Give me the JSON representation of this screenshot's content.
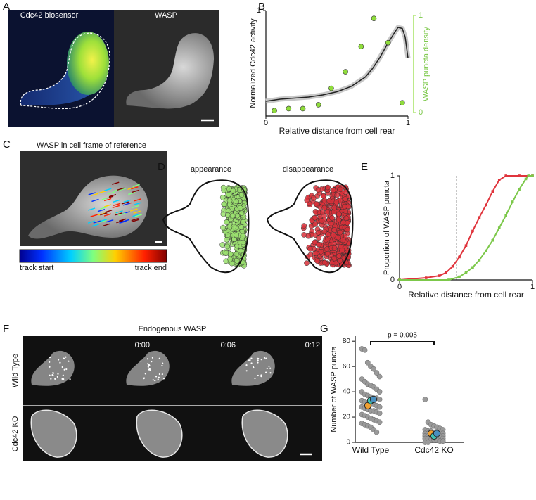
{
  "panel_letters": [
    "A",
    "B",
    "C",
    "D",
    "E",
    "F",
    "G"
  ],
  "panel_a": {
    "titles": [
      "Cdc42 biosensor",
      "WASP"
    ]
  },
  "panel_c": {
    "title": "WASP in cell frame of reference",
    "colorbar": [
      "track start",
      "track end"
    ]
  },
  "panel_d": {
    "titles": [
      "appearance",
      "disappearance"
    ]
  },
  "panel_f": {
    "title": "Endogenous WASP",
    "times": [
      "0:00",
      "0:06",
      "0:12"
    ],
    "rows": [
      "Wild Type",
      "Cdc42 KO"
    ]
  },
  "chart_data": [
    {
      "type": "line",
      "xlabel": "Relative distance from cell rear",
      "ylabel": "Normalized Cdc42 activity",
      "y2label": "WASP puncta density",
      "xlim": [
        0,
        1
      ],
      "ylim": [
        0,
        1
      ],
      "y2lim": [
        0,
        1
      ],
      "xticks": [
        0,
        1
      ],
      "yticks": [
        1
      ],
      "y2ticks": [
        0,
        1
      ],
      "series": [
        {
          "color": "#222222",
          "x": [
            0,
            0.1,
            0.2,
            0.3,
            0.4,
            0.5,
            0.6,
            0.7,
            0.75,
            0.8,
            0.85,
            0.9,
            0.93,
            0.96,
            0.98,
            1
          ],
          "values": [
            0.14,
            0.16,
            0.17,
            0.18,
            0.2,
            0.23,
            0.28,
            0.37,
            0.45,
            0.55,
            0.67,
            0.78,
            0.84,
            0.83,
            0.75,
            0.55
          ]
        },
        {
          "color": "#8fdc3c",
          "axis": "y2",
          "x": [
            0.06,
            0.16,
            0.26,
            0.37,
            0.46,
            0.56,
            0.67,
            0.76,
            0.86,
            0.96
          ],
          "values": [
            0.02,
            0.04,
            0.04,
            0.08,
            0.25,
            0.42,
            0.68,
            0.97,
            0.72,
            0.1
          ]
        }
      ]
    },
    {
      "type": "line",
      "xlabel": "Relative distance from cell rear",
      "ylabel": "Proportion of WASP puncta",
      "xlim": [
        0,
        1
      ],
      "ylim": [
        0,
        1
      ],
      "xticks": [
        0,
        1
      ],
      "yticks": [
        0,
        1
      ],
      "vline": 0.43,
      "series": [
        {
          "color": "#e0343c",
          "x": [
            0,
            0.2,
            0.3,
            0.35,
            0.4,
            0.45,
            0.5,
            0.55,
            0.6,
            0.65,
            0.7,
            0.75,
            0.8,
            0.9,
            1
          ],
          "values": [
            0,
            0.02,
            0.04,
            0.07,
            0.13,
            0.22,
            0.33,
            0.47,
            0.6,
            0.72,
            0.85,
            0.96,
            1,
            1,
            1
          ]
        },
        {
          "color": "#7cc84a",
          "x": [
            0,
            0.37,
            0.45,
            0.5,
            0.55,
            0.6,
            0.65,
            0.7,
            0.75,
            0.8,
            0.85,
            0.9,
            0.95,
            0.97,
            1
          ],
          "values": [
            0,
            0,
            0.03,
            0.07,
            0.12,
            0.19,
            0.28,
            0.38,
            0.5,
            0.62,
            0.75,
            0.87,
            0.97,
            1,
            1
          ]
        }
      ]
    },
    {
      "type": "strip",
      "ylabel": "Number of WASP puncta",
      "categories": [
        "Wild Type",
        "Cdc42 KO"
      ],
      "ylim": [
        0,
        84
      ],
      "yticks": [
        0,
        20,
        40,
        60,
        80
      ],
      "annotation": "p = 0.005",
      "series": [
        {
          "color": "#9a9a9a",
          "values": [
            [
              74,
              73,
              63,
              60,
              58,
              55,
              52,
              50,
              48,
              46,
              45,
              44,
              42,
              40,
              40,
              38,
              37,
              36,
              35,
              35,
              34,
              33,
              32,
              31,
              30,
              30,
              29,
              28,
              28,
              27,
              26,
              25,
              25,
              24,
              23,
              22,
              21,
              20,
              19,
              18,
              17,
              16,
              15,
              14,
              13,
              12,
              10,
              8
            ],
            [
              34,
              16,
              14,
              13,
              12,
              11,
              10,
              10,
              9,
              9,
              8,
              8,
              8,
              7,
              7,
              7,
              6,
              6,
              6,
              5,
              5,
              5,
              5,
              4,
              4,
              4,
              4,
              3,
              3,
              3,
              2,
              2,
              2,
              1,
              1,
              0,
              0
            ]
          ]
        },
        {
          "color": "#f0a030",
          "values": [
            29,
            7
          ]
        },
        {
          "color": "#40c0b0",
          "values": [
            33,
            5
          ]
        },
        {
          "color": "#4a90c0",
          "values": [
            34,
            7
          ]
        }
      ]
    }
  ]
}
